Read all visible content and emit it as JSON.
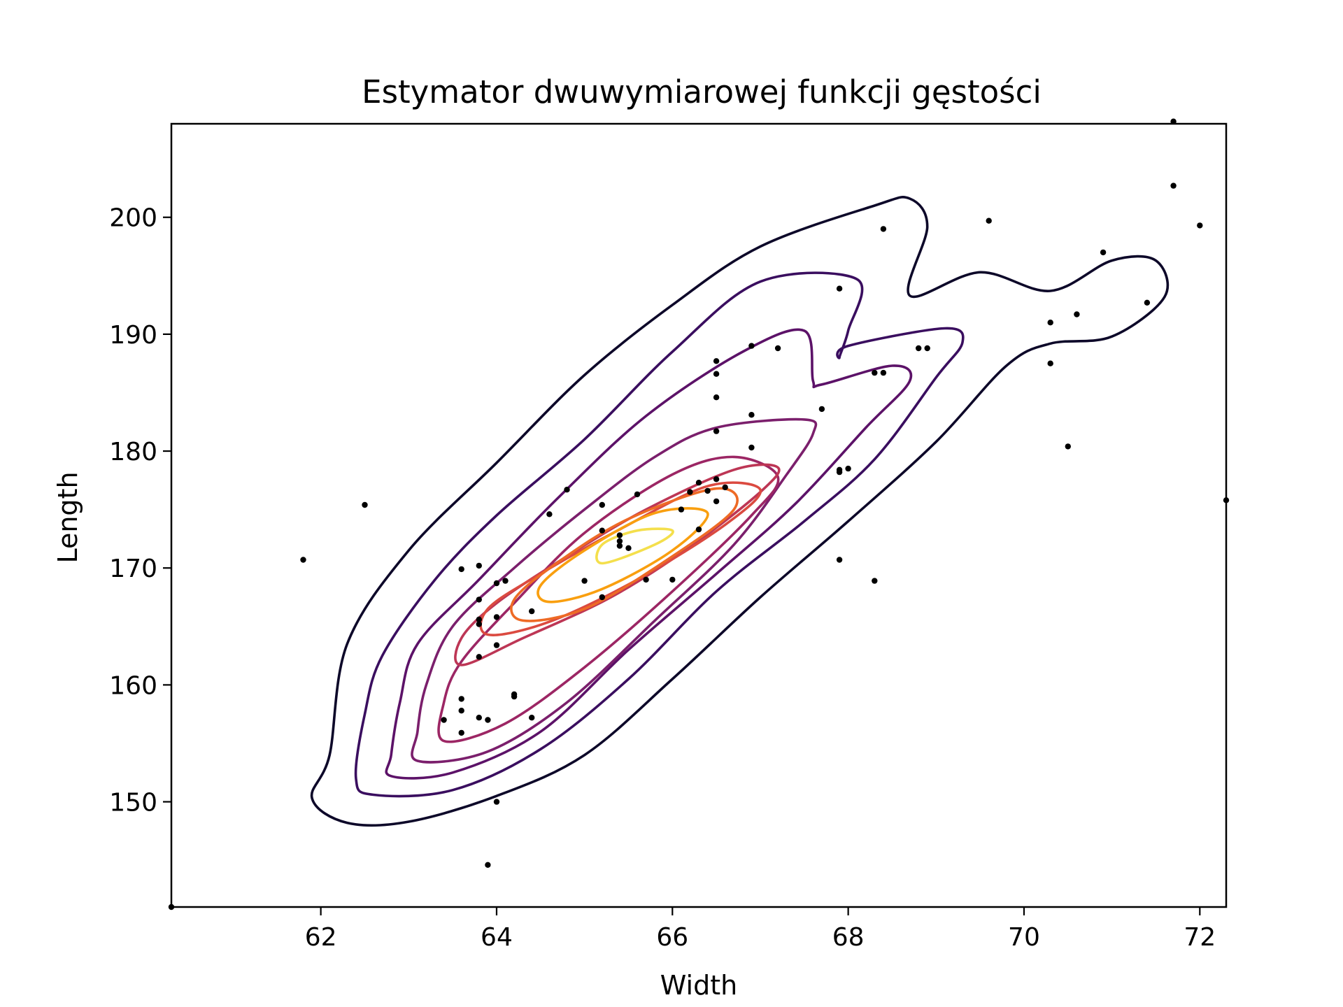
{
  "chart_data": {
    "type": "contour",
    "title": "Estymator dwuwymiarowej funkcji gęstości",
    "xlabel": "Width",
    "ylabel": "Length",
    "xlim": [
      60.3,
      72.3
    ],
    "ylim": [
      141,
      208
    ],
    "x_ticks": [
      62,
      64,
      66,
      68,
      70,
      72
    ],
    "y_ticks": [
      150,
      160,
      170,
      180,
      190,
      200
    ],
    "x_tick_labels": [
      "62",
      "64",
      "66",
      "68",
      "70",
      "72"
    ],
    "y_tick_labels": [
      "150",
      "160",
      "170",
      "180",
      "190",
      "200"
    ],
    "grid": false,
    "colormap": "inferno",
    "scatter": {
      "color": "#000000",
      "points": [
        [
          61.8,
          170.7
        ],
        [
          62.5,
          175.4
        ],
        [
          63.4,
          157.0
        ],
        [
          63.6,
          169.9
        ],
        [
          63.6,
          158.8
        ],
        [
          63.6,
          157.8
        ],
        [
          63.6,
          155.9
        ],
        [
          63.8,
          170.2
        ],
        [
          63.8,
          167.3
        ],
        [
          63.8,
          165.6
        ],
        [
          63.8,
          165.2
        ],
        [
          63.8,
          162.4
        ],
        [
          63.8,
          157.2
        ],
        [
          63.9,
          157.0
        ],
        [
          63.9,
          144.6
        ],
        [
          64.0,
          168.7
        ],
        [
          64.0,
          165.8
        ],
        [
          64.0,
          163.4
        ],
        [
          64.0,
          150.0
        ],
        [
          64.1,
          168.9
        ],
        [
          64.2,
          159.2
        ],
        [
          64.2,
          159.0
        ],
        [
          64.4,
          166.3
        ],
        [
          64.4,
          157.2
        ],
        [
          64.6,
          174.6
        ],
        [
          64.8,
          176.7
        ],
        [
          65.0,
          168.9
        ],
        [
          65.2,
          175.4
        ],
        [
          65.2,
          173.2
        ],
        [
          65.2,
          167.5
        ],
        [
          65.4,
          172.8
        ],
        [
          65.4,
          172.3
        ],
        [
          65.4,
          171.9
        ],
        [
          65.5,
          171.7
        ],
        [
          65.6,
          176.3
        ],
        [
          65.7,
          169.0
        ],
        [
          66.0,
          169.0
        ],
        [
          66.1,
          175.0
        ],
        [
          66.2,
          176.5
        ],
        [
          66.3,
          177.3
        ],
        [
          66.3,
          173.3
        ],
        [
          66.4,
          176.6
        ],
        [
          66.5,
          187.7
        ],
        [
          66.5,
          186.6
        ],
        [
          66.5,
          184.6
        ],
        [
          66.5,
          181.7
        ],
        [
          66.5,
          177.6
        ],
        [
          66.5,
          175.7
        ],
        [
          66.6,
          176.9
        ],
        [
          66.9,
          189.0
        ],
        [
          66.9,
          183.1
        ],
        [
          66.9,
          180.3
        ],
        [
          67.2,
          188.8
        ],
        [
          67.7,
          183.6
        ],
        [
          67.9,
          193.9
        ],
        [
          67.9,
          178.4
        ],
        [
          67.9,
          178.2
        ],
        [
          67.9,
          170.7
        ],
        [
          68.0,
          178.5
        ],
        [
          68.3,
          186.7
        ],
        [
          68.3,
          168.9
        ],
        [
          68.4,
          199.0
        ],
        [
          68.4,
          186.7
        ],
        [
          68.8,
          188.8
        ],
        [
          68.9,
          188.8
        ],
        [
          69.6,
          199.7
        ],
        [
          70.3,
          191.0
        ],
        [
          70.3,
          187.5
        ],
        [
          70.5,
          180.4
        ],
        [
          70.6,
          191.7
        ],
        [
          70.9,
          197.0
        ],
        [
          71.4,
          192.7
        ],
        [
          71.7,
          208.2
        ],
        [
          71.7,
          202.7
        ],
        [
          72.0,
          199.3
        ],
        [
          72.3,
          175.8
        ],
        [
          60.3,
          141.0
        ]
      ]
    },
    "contour_levels": [
      {
        "color": "#0d0829",
        "points": [
          [
            62.3,
            148.2
          ],
          [
            63.0,
            148.3
          ],
          [
            64.0,
            150.5
          ],
          [
            65.0,
            154.0
          ],
          [
            66.0,
            160.5
          ],
          [
            67.0,
            167.5
          ],
          [
            68.0,
            174.0
          ],
          [
            69.0,
            180.8
          ],
          [
            69.8,
            187.3
          ],
          [
            70.3,
            189.2
          ],
          [
            71.0,
            189.8
          ],
          [
            71.6,
            193.2
          ],
          [
            71.5,
            196.3
          ],
          [
            71.0,
            196.3
          ],
          [
            70.3,
            193.7
          ],
          [
            69.5,
            195.3
          ],
          [
            68.7,
            193.3
          ],
          [
            68.9,
            199.2
          ],
          [
            68.7,
            201.6
          ],
          [
            68.3,
            201.0
          ],
          [
            67.0,
            197.5
          ],
          [
            66.0,
            192.5
          ],
          [
            65.0,
            186.5
          ],
          [
            64.0,
            179.0
          ],
          [
            63.0,
            171.5
          ],
          [
            62.3,
            163.5
          ],
          [
            62.1,
            154.0
          ],
          [
            61.9,
            150.3
          ]
        ]
      },
      {
        "color": "#3a0e5f",
        "points": [
          [
            62.6,
            150.6
          ],
          [
            63.5,
            151.0
          ],
          [
            64.5,
            154.5
          ],
          [
            65.5,
            160.5
          ],
          [
            66.5,
            168.0
          ],
          [
            67.5,
            174.0
          ],
          [
            68.3,
            179.3
          ],
          [
            69.0,
            186.3
          ],
          [
            69.3,
            189.3
          ],
          [
            69.1,
            190.5
          ],
          [
            68.0,
            189.0
          ],
          [
            67.9,
            188.0
          ],
          [
            68.0,
            190.3
          ],
          [
            68.1,
            194.7
          ],
          [
            67.0,
            194.5
          ],
          [
            66.0,
            188.5
          ],
          [
            65.0,
            181.0
          ],
          [
            64.0,
            174.5
          ],
          [
            63.3,
            169.0
          ],
          [
            62.7,
            162.5
          ],
          [
            62.5,
            157.5
          ],
          [
            62.4,
            152.0
          ]
        ]
      },
      {
        "color": "#5c1268",
        "points": [
          [
            62.8,
            152.2
          ],
          [
            63.5,
            152.5
          ],
          [
            64.5,
            156.0
          ],
          [
            65.5,
            163.0
          ],
          [
            66.5,
            169.5
          ],
          [
            67.4,
            175.5
          ],
          [
            68.2,
            182.0
          ],
          [
            68.7,
            186.0
          ],
          [
            68.5,
            187.3
          ],
          [
            67.7,
            185.7
          ],
          [
            67.6,
            186.0
          ],
          [
            67.5,
            190.3
          ],
          [
            66.8,
            188.5
          ],
          [
            65.7,
            183.0
          ],
          [
            64.7,
            176.0
          ],
          [
            63.8,
            169.0
          ],
          [
            63.1,
            163.5
          ],
          [
            62.9,
            158.5
          ],
          [
            62.8,
            154.0
          ]
        ]
      },
      {
        "color": "#7b1f6c",
        "points": [
          [
            63.1,
            153.5
          ],
          [
            63.9,
            154.3
          ],
          [
            64.8,
            158.5
          ],
          [
            65.8,
            165.5
          ],
          [
            66.7,
            172.0
          ],
          [
            67.3,
            178.0
          ],
          [
            67.6,
            181.5
          ],
          [
            67.5,
            182.7
          ],
          [
            66.5,
            182.0
          ],
          [
            65.8,
            179.5
          ],
          [
            65.0,
            175.0
          ],
          [
            64.2,
            170.0
          ],
          [
            63.5,
            165.0
          ],
          [
            63.2,
            160.0
          ],
          [
            63.1,
            156.0
          ]
        ]
      },
      {
        "color": "#9c2664",
        "points": [
          [
            63.4,
            155.2
          ],
          [
            64.1,
            156.7
          ],
          [
            65.0,
            161.5
          ],
          [
            66.0,
            168.0
          ],
          [
            66.9,
            174.5
          ],
          [
            67.2,
            177.8
          ],
          [
            66.7,
            179.5
          ],
          [
            66.0,
            178.0
          ],
          [
            65.0,
            173.0
          ],
          [
            64.2,
            167.0
          ],
          [
            63.6,
            162.0
          ],
          [
            63.4,
            158.5
          ]
        ]
      },
      {
        "color": "#bd3655",
        "points": [
          [
            63.6,
            161.7
          ],
          [
            64.3,
            164.0
          ],
          [
            65.3,
            167.5
          ],
          [
            66.2,
            171.8
          ],
          [
            67.0,
            176.5
          ],
          [
            67.2,
            178.6
          ],
          [
            66.7,
            178.4
          ],
          [
            65.7,
            175.0
          ],
          [
            64.8,
            171.0
          ],
          [
            64.0,
            167.0
          ],
          [
            63.6,
            164.0
          ]
        ]
      },
      {
        "color": "#db4a40",
        "points": [
          [
            63.9,
            164.3
          ],
          [
            64.6,
            165.4
          ],
          [
            65.6,
            169.0
          ],
          [
            66.6,
            173.7
          ],
          [
            67.0,
            176.7
          ],
          [
            66.4,
            177.0
          ],
          [
            65.4,
            173.3
          ],
          [
            64.5,
            169.5
          ],
          [
            63.9,
            166.5
          ]
        ]
      },
      {
        "color": "#ee6a25",
        "points": [
          [
            64.3,
            165.5
          ],
          [
            65.0,
            166.5
          ],
          [
            65.9,
            170.5
          ],
          [
            66.7,
            175.0
          ],
          [
            66.5,
            176.8
          ],
          [
            65.5,
            174.2
          ],
          [
            64.7,
            170.5
          ],
          [
            64.2,
            167.3
          ]
        ]
      },
      {
        "color": "#f99f0f",
        "points": [
          [
            64.6,
            167.1
          ],
          [
            65.2,
            168.2
          ],
          [
            66.0,
            171.5
          ],
          [
            66.4,
            174.7
          ],
          [
            65.8,
            174.7
          ],
          [
            65.0,
            171.5
          ],
          [
            64.5,
            168.5
          ]
        ]
      },
      {
        "color": "#f4df4c",
        "points": [
          [
            65.2,
            170.4
          ],
          [
            65.8,
            172.0
          ],
          [
            66.0,
            173.2
          ],
          [
            65.6,
            173.2
          ],
          [
            65.2,
            172.0
          ]
        ]
      }
    ]
  }
}
